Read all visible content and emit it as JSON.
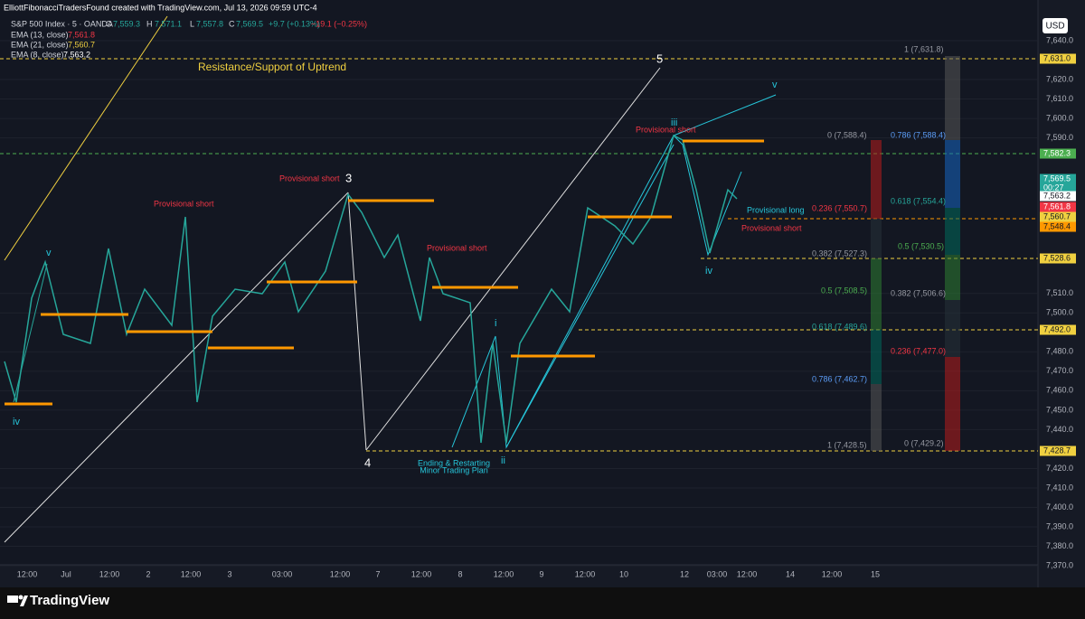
{
  "header": {
    "credit": "ElliottFibonacciTradersFound created with TradingView.com, Jul 13, 2026 09:59 UTC-4",
    "symbol": "S&P 500 Index · 5 · OANDA",
    "o_label": "O",
    "open": "7,559.3",
    "h_label": "H",
    "high": "7,571.1",
    "l_label": "L",
    "low": "7,557.8",
    "c_label": "C",
    "close": "7,569.5",
    "change": "+9.7 (+0.13%)",
    "change2": "−19.1 (−0.25%)"
  },
  "indicators": [
    {
      "name": "EMA (13, close)",
      "value": "7,561.8"
    },
    {
      "name": "EMA (21, close)",
      "value": "7,560.7"
    },
    {
      "name": "EMA (8, close)",
      "value": "7,563.2"
    }
  ],
  "annotations": {
    "trend": "Resistance/Support of Uptrend",
    "w3": "3",
    "w4": "4",
    "w5": "5",
    "wiii": "iii",
    "wiv_left": "iv",
    "wv_left": "v",
    "wi": "i",
    "wii": "ii",
    "wiv_right": "iv",
    "wv_right": "v",
    "ps1": "Provisional short",
    "ps2": "Provisional short",
    "ps3": "Provisional short",
    "ps4": "Provisional short",
    "ps5": "Provisional short",
    "pl": "Provisional long",
    "plan1": "Ending & Restarting",
    "plan2": "Minor Trading Plan"
  },
  "fib_left": [
    "1 (7,631.8)",
    "0 (7,588.4)",
    "0.236 (7,550.7)",
    "0.382 (7,527.3)",
    "0.5 (7,508.5)",
    "0.618 (7,489.6)",
    "0.786 (7,462.7)",
    "1 (7,428.5)"
  ],
  "fib_right": [
    "0.786 (7,588.4)",
    "0.618 (7,554.4)",
    "0.5 (7,530.5)",
    "0.382 (7,506.6)",
    "0.236 (7,477.0)",
    "0 (7,429.2)"
  ],
  "price_axis": {
    "currency": "USD",
    "ticks": [
      "7,640.0",
      "7,620.0",
      "7,610.0",
      "7,600.0",
      "7,590.0",
      "7,510.0",
      "7,500.0",
      "7,480.0",
      "7,470.0",
      "7,460.0",
      "7,450.0",
      "7,440.0",
      "7,420.0",
      "7,410.0",
      "7,400.0",
      "7,390.0",
      "7,380.0",
      "7,370.0"
    ],
    "tags": [
      "7,631.0",
      "7,582.3",
      "7,569.5",
      "00:27",
      "7,563.2",
      "7,561.8",
      "7,560.7",
      "7,548.4",
      "7,528.6",
      "7,492.0",
      "7,428.7"
    ]
  },
  "time_axis": [
    "12:00",
    "Jul",
    "12:00",
    "2",
    "12:00",
    "3",
    "03:00",
    "12:00",
    "7",
    "12:00",
    "8",
    "12:00",
    "9",
    "12:00",
    "10",
    "12",
    "03:00",
    "12:00",
    "14",
    "12:00",
    "15"
  ],
  "footer": {
    "brand": "TradingView"
  }
}
